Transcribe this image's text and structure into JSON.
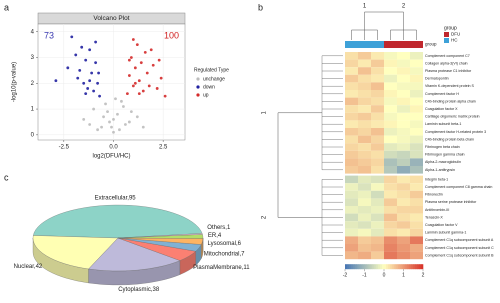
{
  "chart_data": [
    {
      "type": "scatter",
      "panel": "a",
      "title": "Volcano Plot",
      "xlabel": "log2(DFU/HC)",
      "ylabel": "-log10(p-value)",
      "xlim": [
        -3.8,
        3.6
      ],
      "ylim": [
        -0.2,
        4.3
      ],
      "xticks": [
        {
          "value": -2.5,
          "label": "-2.5"
        },
        {
          "value": 0,
          "label": "0.0"
        },
        {
          "value": 2.5,
          "label": "2.5"
        }
      ],
      "yticks": [
        0,
        1,
        2,
        3,
        4
      ],
      "grid": true,
      "legend_title": "Regulated Type",
      "legend": "right",
      "annotations": [
        {
          "text": "73",
          "color": "#3a3ab0"
        },
        {
          "text": "100",
          "color": "#d02020"
        }
      ],
      "series": [
        {
          "name": "unchange",
          "color": "#bdbdbd",
          "x": [
            -1.5,
            -1.0,
            -0.6,
            -0.4,
            -0.2,
            0,
            0.2,
            0.4,
            0.6,
            0.9,
            1.2,
            -0.8,
            -0.3,
            0.1,
            0.5,
            -0.1,
            0.3,
            -0.5,
            0.8,
            1.5,
            -1.2,
            0.0
          ],
          "values": [
            0.6,
            1.0,
            0.3,
            1.2,
            0.5,
            0.1,
            0.8,
            1.3,
            0.4,
            0.9,
            0.7,
            0.2,
            0.9,
            1.4,
            1.1,
            0.3,
            0.2,
            0.7,
            0.5,
            0.3,
            0.4,
            0.6
          ]
        },
        {
          "name": "down",
          "color": "#2020a0",
          "x": [
            -2.9,
            -2.3,
            -2.1,
            -1.9,
            -1.8,
            -1.6,
            -1.5,
            -1.4,
            -1.3,
            -1.2,
            -1.1,
            -1.0,
            -0.9,
            -0.8,
            -0.7,
            -1.7,
            -1.2,
            -0.9,
            -0.75,
            -1.4
          ],
          "values": [
            2.1,
            2.6,
            3.8,
            3.1,
            2.2,
            3.4,
            2.0,
            2.9,
            1.8,
            3.3,
            2.4,
            1.7,
            2.8,
            2.0,
            1.5,
            2.5,
            2.1,
            3.6,
            2.4,
            1.6
          ]
        },
        {
          "name": "up",
          "color": "#d42a2a",
          "x": [
            0.7,
            0.8,
            0.9,
            1.0,
            1.1,
            1.2,
            1.3,
            1.4,
            1.5,
            1.6,
            1.7,
            1.8,
            2.0,
            2.2,
            2.4,
            2.6,
            1.0,
            1.3,
            0.8,
            1.9,
            2.3,
            1.1
          ],
          "values": [
            1.6,
            2.3,
            3.0,
            1.9,
            2.6,
            3.5,
            2.1,
            2.8,
            1.7,
            3.2,
            2.4,
            1.9,
            2.7,
            1.8,
            2.2,
            1.5,
            3.7,
            1.6,
            2.9,
            3.3,
            2.9,
            2.0
          ]
        }
      ]
    },
    {
      "type": "heatmap",
      "panel": "b",
      "legend_title": "group",
      "groups": [
        {
          "name": "DFU",
          "color": "#c0272d"
        },
        {
          "name": "HC",
          "color": "#3ea1d8"
        }
      ],
      "zlim": [
        -2,
        2
      ],
      "zticks": [
        -2,
        -1,
        0,
        1,
        2
      ],
      "colors": [
        "#4575b4",
        "#ffffbf",
        "#d73027"
      ],
      "column_clusters": [
        {
          "name": "1",
          "group": "HC",
          "columns": [
            null,
            null,
            null
          ]
        },
        {
          "name": "2",
          "group": "DFU",
          "columns": [
            null,
            null,
            null
          ]
        }
      ],
      "row_clusters": [
        {
          "name": "1",
          "rows": [
            "Complement component C7",
            "Collagen alpha-3(VI) chain",
            "Plasma protease C1 inhibitor",
            "Dermatopontin",
            "Vitamin K-dependent protein S",
            "Complement factor H",
            "C4b-binding protein alpha chain",
            "Coagulation factor X",
            "Cartilage oligomeric matrix protein",
            "Laminin subunit beta-1",
            "Complement factor H-related protein 3",
            "C4b-binding protein beta chain",
            "Fibrinogen beta chain",
            "Fibrinogen gamma chain",
            "Alpha-2-macroglobulin",
            "Alpha-1-antitrypsin"
          ],
          "values": [
            [
              0.3,
              0.5,
              0.2,
              -0.1,
              0.0,
              -0.2
            ],
            [
              0.4,
              0.2,
              0.5,
              0.1,
              -0.1,
              0.0
            ],
            [
              0.2,
              0.6,
              0.3,
              0.0,
              0.1,
              -0.1
            ],
            [
              0.5,
              0.3,
              0.2,
              -0.2,
              0.0,
              0.1
            ],
            [
              0.3,
              0.4,
              0.6,
              0.0,
              -0.1,
              -0.1
            ],
            [
              0.2,
              0.3,
              0.4,
              0.1,
              0.0,
              -0.2
            ],
            [
              0.6,
              0.4,
              0.3,
              -0.1,
              0.1,
              0.0
            ],
            [
              0.3,
              0.2,
              0.5,
              0.0,
              -0.2,
              0.1
            ],
            [
              0.4,
              0.5,
              0.3,
              -0.1,
              0.0,
              0.0
            ],
            [
              0.2,
              0.3,
              0.2,
              0.1,
              0.0,
              -0.1
            ],
            [
              0.5,
              0.4,
              0.6,
              -0.2,
              -0.1,
              0.0
            ],
            [
              0.3,
              0.6,
              0.4,
              0.0,
              -0.1,
              -0.2
            ],
            [
              0.4,
              0.3,
              0.5,
              -0.3,
              -0.2,
              -0.4
            ],
            [
              0.5,
              0.4,
              0.3,
              -0.5,
              -0.6,
              -0.4
            ],
            [
              0.6,
              0.5,
              0.4,
              -0.9,
              -0.7,
              -1.1
            ],
            [
              0.5,
              0.6,
              0.3,
              -0.8,
              -1.2,
              -0.9
            ]
          ]
        },
        {
          "name": "2",
          "rows": [
            "Integrin beta-1",
            "Complement component C8 gamma chain",
            "Fibronectin",
            "Plasma serine protease inhibitor",
            "Antithrombin-III",
            "Tenascin-X",
            "Coagulation factor V",
            "Laminin subunit gamma-1",
            "Complement C1q subcomponent subunit A",
            "Complement C1q subcomponent subunit C",
            "Complement C1q subcomponent subunit B"
          ],
          "values": [
            [
              -0.6,
              -0.3,
              -0.4,
              0.4,
              0.2,
              0.3
            ],
            [
              -0.2,
              -0.4,
              -0.1,
              0.3,
              0.4,
              0.2
            ],
            [
              -0.3,
              -0.2,
              -0.5,
              0.2,
              0.3,
              0.5
            ],
            [
              -0.4,
              -0.1,
              -0.3,
              0.5,
              0.2,
              0.3
            ],
            [
              -0.2,
              -0.3,
              -0.2,
              0.3,
              0.4,
              0.4
            ],
            [
              -0.5,
              -0.2,
              -0.4,
              0.6,
              0.3,
              0.2
            ],
            [
              -0.3,
              -0.4,
              -0.2,
              0.4,
              0.5,
              0.3
            ],
            [
              -0.2,
              -0.1,
              -0.3,
              0.3,
              0.2,
              0.4
            ],
            [
              0.8,
              0.5,
              0.6,
              1.1,
              0.9,
              1.3
            ],
            [
              0.9,
              0.6,
              0.7,
              1.2,
              1.0,
              0.8
            ],
            [
              0.7,
              0.8,
              0.5,
              1.3,
              1.1,
              0.9
            ]
          ]
        }
      ]
    },
    {
      "type": "pie",
      "panel": "c",
      "values": [
        95,
        42,
        38,
        11,
        7,
        6,
        4,
        1
      ],
      "value_labels": [
        "Extracellular,95",
        "Nuclear,42",
        "Cytoplasmic,38",
        "PlasmaMembrane,11",
        "Mitochondrial,7",
        "Lysosomal,6",
        "ER,4",
        "Others,1"
      ],
      "colors": [
        "#8dd3c7",
        "#ffffb3",
        "#bebada",
        "#fb8072",
        "#80b1d3",
        "#fdb462",
        "#b3de69",
        "#fccde5"
      ]
    }
  ]
}
